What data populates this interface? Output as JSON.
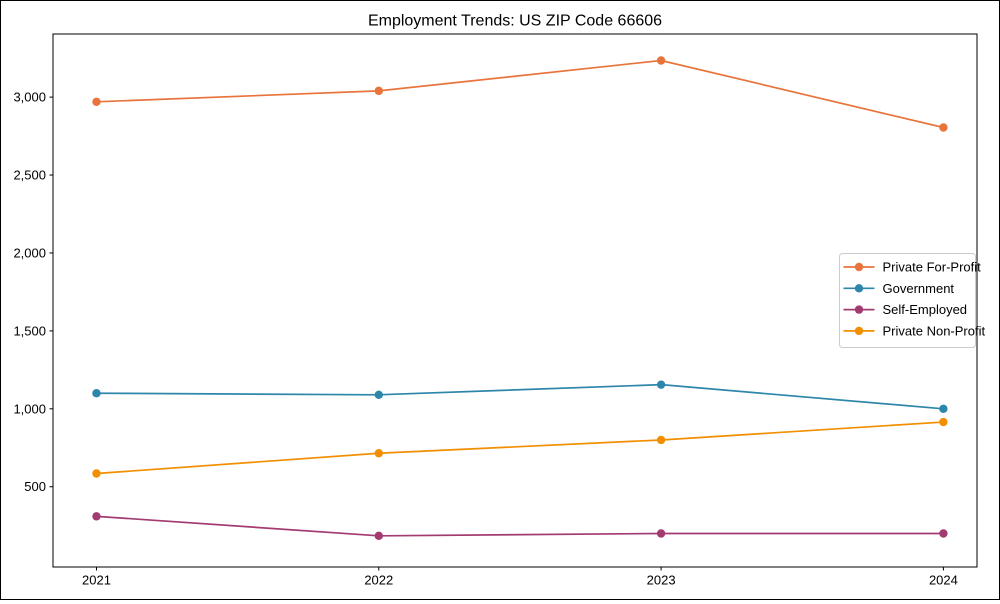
{
  "figure": {
    "title": "Employment Trends: US ZIP Code 66606",
    "background_color": "#ffffff",
    "axis_color": "#000000",
    "legend_border_color": "#cccccc"
  },
  "chart_data": {
    "type": "line",
    "title": "Employment Trends: US ZIP Code 66606",
    "xlabel": "",
    "ylabel": "",
    "x": [
      2021,
      2022,
      2023,
      2024
    ],
    "x_tick_labels": [
      "2021",
      "2022",
      "2023",
      "2024"
    ],
    "y_ticks": [
      500,
      1000,
      1500,
      2000,
      2500,
      3000
    ],
    "y_tick_labels": [
      "500",
      "1,000",
      "1,500",
      "2,000",
      "2,500",
      "3,000"
    ],
    "xlim": [
      2020.846,
      2024.119
    ],
    "ylim": [
      -15,
      3405
    ],
    "grid": false,
    "legend_position": "right",
    "marker": "circle",
    "series": [
      {
        "name": "Private For-Profit",
        "color": "#E8743B",
        "values": [
          2970,
          3040,
          3235,
          2805
        ]
      },
      {
        "name": "Government",
        "color": "#2E86AB",
        "values": [
          1100,
          1090,
          1155,
          1000
        ]
      },
      {
        "name": "Self-Employed",
        "color": "#A23B72",
        "values": [
          310,
          185,
          200,
          200
        ]
      },
      {
        "name": "Private Non-Profit",
        "color": "#F18F01",
        "values": [
          585,
          715,
          800,
          915
        ]
      }
    ]
  }
}
